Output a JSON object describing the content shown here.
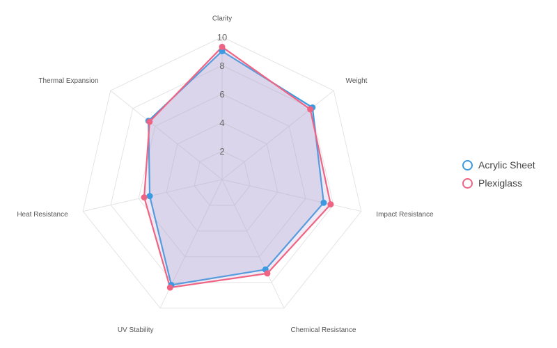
{
  "chart_data": {
    "type": "radar",
    "axes": [
      "Clarity",
      "Weight",
      "Impact Resistance",
      "Chemical Resistance",
      "UV Stability",
      "Heat Resistance",
      "Thermal Expansion"
    ],
    "ticks": [
      "2",
      "4",
      "6",
      "8",
      "10"
    ],
    "rmin": 0,
    "rmax": 10,
    "grid": true,
    "legend_position": "right",
    "series": [
      {
        "name": "Acrylic Sheet",
        "color": "#3b9ae1",
        "values": [
          9.0,
          8.1,
          7.3,
          7.0,
          8.2,
          5.2,
          6.6
        ]
      },
      {
        "name": "Plexiglass",
        "color": "#f06483",
        "values": [
          9.3,
          7.9,
          7.8,
          7.3,
          8.4,
          5.6,
          6.5
        ]
      }
    ]
  }
}
